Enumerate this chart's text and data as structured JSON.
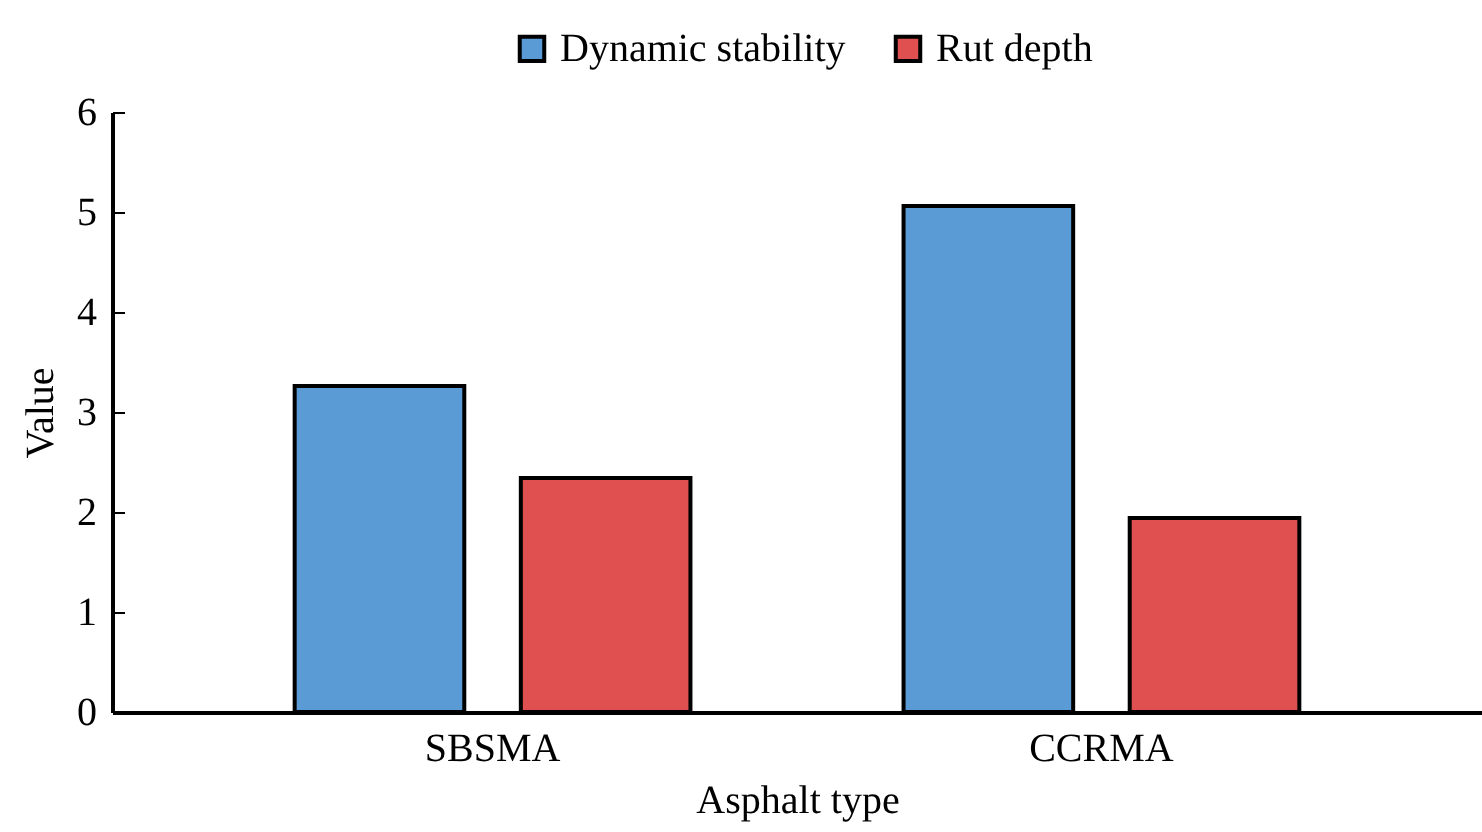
{
  "chart_data": {
    "type": "bar",
    "xlabel": "Asphalt type",
    "ylabel": "Value",
    "categories": [
      "SBSMA",
      "CCRMA"
    ],
    "series": [
      {
        "name": "Dynamic stability",
        "color": "#5b9bd5",
        "values": [
          3.26,
          5.06
        ]
      },
      {
        "name": "Rut depth",
        "color": "#e05050",
        "values": [
          2.34,
          1.94
        ]
      }
    ],
    "ylim": [
      0,
      6
    ],
    "yticks": [
      0,
      1,
      2,
      3,
      4,
      5,
      6
    ],
    "grid": false,
    "legend": "top"
  }
}
